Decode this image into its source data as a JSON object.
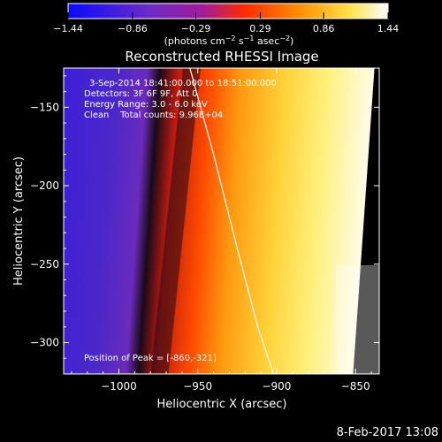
{
  "chart_data": {
    "type": "heatmap",
    "title": "Reconstructed RHESSI Image",
    "xlabel": "Heliocentric X (arcsec)",
    "ylabel": "Heliocentric Y (arcsec)",
    "xlim": [
      -1035,
      -835
    ],
    "ylim": [
      -320,
      -125
    ],
    "x_ticks": [
      -1000,
      -950,
      -900,
      -850
    ],
    "y_ticks": [
      -150,
      -200,
      -250,
      -300
    ],
    "x_tick_labels": [
      "−1000",
      "−950",
      "−900",
      "−850"
    ],
    "y_tick_labels": [
      "−150",
      "−200",
      "−250",
      "−300"
    ],
    "colorbar": {
      "ticks": [
        -1.44,
        -0.86,
        -0.29,
        0.29,
        0.86,
        1.44
      ],
      "tick_labels": [
        "−1.44",
        "−0.86",
        "−0.29",
        "0.29",
        "0.86",
        "1.44"
      ],
      "units_main": "(photons cm",
      "units_exp1": "−2",
      "units_mid": " s",
      "units_exp2": "−1",
      "units_end": " asec",
      "units_exp3": "−2",
      "units_close": ")"
    },
    "annotations": [
      "3-Sep-2014 18:41:00.000 to 18:51:00.000",
      "Detectors: 3F 6F 9F, Att 0",
      "Energy Range: 3.0 - 6.0 keV",
      "Clean    Total counts: 9.96E+04"
    ],
    "peak_label": "Position of Peak = [-860,-321]",
    "limb_curve": [
      [
        -955,
        -125
      ],
      [
        -940,
        -180
      ],
      [
        -925,
        -240
      ],
      [
        -912,
        -290
      ],
      [
        -902,
        -320
      ]
    ]
  },
  "footer": {
    "date": "8-Feb-2017 13:08"
  }
}
